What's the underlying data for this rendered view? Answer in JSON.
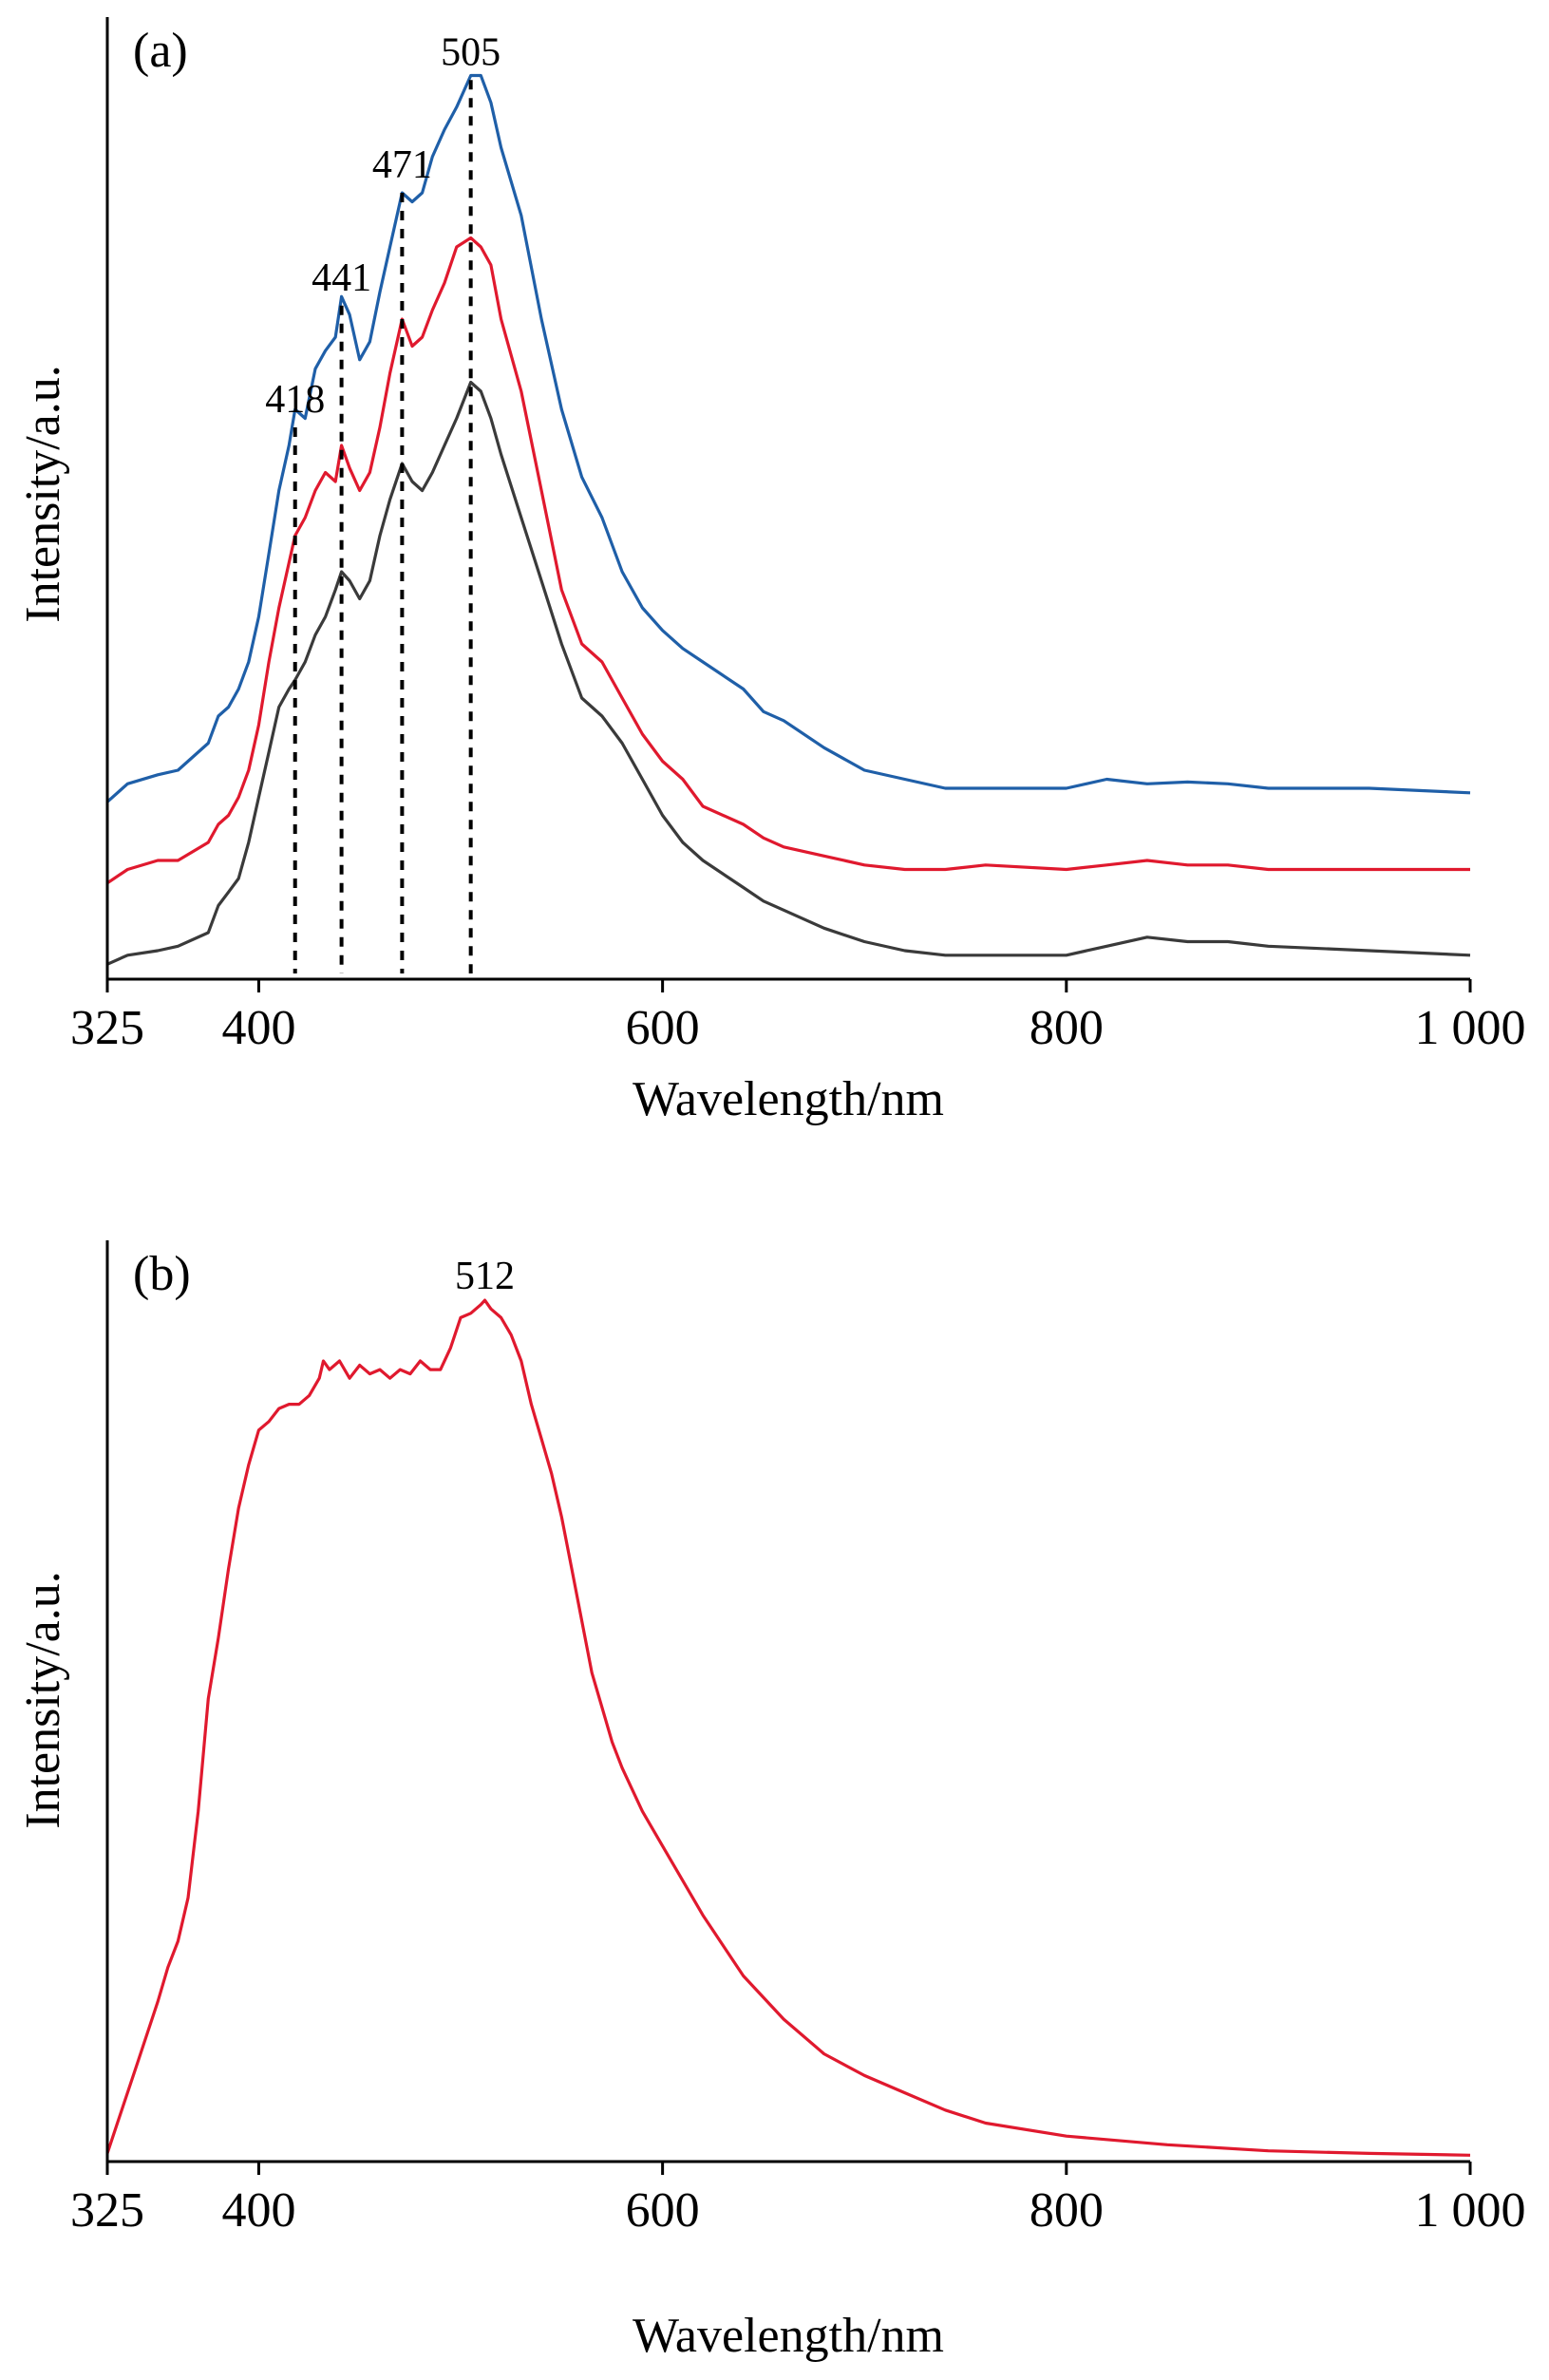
{
  "chart_data": [
    {
      "type": "line",
      "panel_label": "(a)",
      "xlabel": "Wavelength/nm",
      "ylabel": "Intensity/a.u.",
      "xlim": [
        325,
        1000
      ],
      "ylim": [
        0,
        1
      ],
      "xticks": [
        {
          "value": 325,
          "label": "325"
        },
        {
          "value": 400,
          "label": "400"
        },
        {
          "value": 600,
          "label": "600"
        },
        {
          "value": 800,
          "label": "800"
        },
        {
          "value": 1000,
          "label": "1 000"
        }
      ],
      "colors": [
        "#1f5fa8",
        "#e0192e",
        "#3a3a3a"
      ],
      "series": [
        {
          "color": "#1f5fa8",
          "x": [
            325,
            335,
            350,
            360,
            375,
            380,
            385,
            390,
            395,
            400,
            405,
            410,
            415,
            418,
            423,
            428,
            433,
            438,
            441,
            445,
            450,
            455,
            460,
            465,
            471,
            476,
            481,
            486,
            492,
            498,
            505,
            510,
            515,
            520,
            530,
            540,
            550,
            560,
            570,
            580,
            590,
            600,
            610,
            620,
            640,
            650,
            660,
            680,
            700,
            720,
            740,
            760,
            800,
            820,
            840,
            860,
            880,
            900,
            950,
            1000
          ],
          "y": [
            0.185,
            0.205,
            0.215,
            0.22,
            0.25,
            0.28,
            0.29,
            0.31,
            0.34,
            0.39,
            0.46,
            0.53,
            0.58,
            0.62,
            0.61,
            0.665,
            0.685,
            0.7,
            0.745,
            0.725,
            0.675,
            0.695,
            0.75,
            0.8,
            0.86,
            0.85,
            0.86,
            0.9,
            0.93,
            0.955,
            0.99,
            0.99,
            0.96,
            0.91,
            0.835,
            0.72,
            0.62,
            0.545,
            0.5,
            0.44,
            0.4,
            0.375,
            0.355,
            0.34,
            0.31,
            0.285,
            0.275,
            0.245,
            0.22,
            0.21,
            0.2,
            0.2,
            0.2,
            0.21,
            0.205,
            0.207,
            0.205,
            0.2,
            0.2,
            0.195
          ]
        },
        {
          "color": "#e0192e",
          "x": [
            325,
            335,
            350,
            360,
            375,
            380,
            385,
            390,
            395,
            400,
            405,
            410,
            415,
            418,
            423,
            428,
            433,
            438,
            441,
            445,
            450,
            455,
            460,
            465,
            471,
            476,
            481,
            486,
            492,
            498,
            505,
            510,
            515,
            520,
            530,
            540,
            550,
            560,
            570,
            580,
            590,
            600,
            610,
            620,
            640,
            650,
            660,
            680,
            700,
            720,
            740,
            760,
            800,
            820,
            840,
            860,
            880,
            900,
            950,
            1000
          ],
          "y": [
            0.095,
            0.11,
            0.12,
            0.12,
            0.14,
            0.16,
            0.17,
            0.19,
            0.22,
            0.27,
            0.34,
            0.4,
            0.45,
            0.48,
            0.5,
            0.53,
            0.55,
            0.54,
            0.58,
            0.555,
            0.53,
            0.55,
            0.6,
            0.66,
            0.72,
            0.69,
            0.7,
            0.73,
            0.76,
            0.8,
            0.81,
            0.8,
            0.78,
            0.72,
            0.64,
            0.53,
            0.42,
            0.36,
            0.34,
            0.3,
            0.26,
            0.23,
            0.21,
            0.18,
            0.16,
            0.145,
            0.135,
            0.125,
            0.115,
            0.11,
            0.11,
            0.115,
            0.11,
            0.115,
            0.12,
            0.115,
            0.115,
            0.11,
            0.11,
            0.11
          ]
        },
        {
          "color": "#3a3a3a",
          "x": [
            325,
            335,
            350,
            360,
            375,
            380,
            385,
            390,
            395,
            400,
            405,
            410,
            415,
            418,
            423,
            428,
            433,
            438,
            441,
            445,
            450,
            455,
            460,
            465,
            471,
            476,
            481,
            486,
            492,
            498,
            505,
            510,
            515,
            520,
            530,
            540,
            550,
            560,
            570,
            580,
            590,
            600,
            610,
            620,
            640,
            650,
            660,
            680,
            700,
            720,
            740,
            760,
            800,
            820,
            840,
            860,
            880,
            900,
            950,
            1000
          ],
          "y": [
            0.005,
            0.015,
            0.02,
            0.025,
            0.04,
            0.07,
            0.085,
            0.1,
            0.14,
            0.19,
            0.24,
            0.29,
            0.31,
            0.32,
            0.34,
            0.37,
            0.39,
            0.42,
            0.44,
            0.43,
            0.41,
            0.43,
            0.48,
            0.52,
            0.56,
            0.54,
            0.53,
            0.55,
            0.58,
            0.61,
            0.65,
            0.64,
            0.61,
            0.57,
            0.5,
            0.43,
            0.36,
            0.3,
            0.28,
            0.25,
            0.21,
            0.17,
            0.14,
            0.12,
            0.09,
            0.075,
            0.065,
            0.045,
            0.03,
            0.02,
            0.015,
            0.015,
            0.015,
            0.025,
            0.035,
            0.03,
            0.03,
            0.025,
            0.02,
            0.015
          ]
        }
      ],
      "peaks": [
        {
          "x": 418,
          "label": "418",
          "top": 0.6
        },
        {
          "x": 441,
          "label": "441",
          "top": 0.735
        },
        {
          "x": 471,
          "label": "471",
          "top": 0.86
        },
        {
          "x": 505,
          "label": "505",
          "top": 0.985
        }
      ]
    },
    {
      "type": "line",
      "panel_label": "(b)",
      "xlabel": "Wavelength/nm",
      "ylabel": "Intensity/a.u.",
      "xlim": [
        325,
        1000
      ],
      "ylim": [
        0,
        1
      ],
      "xticks": [
        {
          "value": 325,
          "label": "325"
        },
        {
          "value": 400,
          "label": "400"
        },
        {
          "value": 600,
          "label": "600"
        },
        {
          "value": 800,
          "label": "800"
        },
        {
          "value": 1000,
          "label": "1 000"
        }
      ],
      "colors": [
        "#e0192e"
      ],
      "series": [
        {
          "color": "#e0192e",
          "x": [
            325,
            330,
            340,
            350,
            355,
            360,
            365,
            370,
            375,
            380,
            385,
            390,
            395,
            400,
            405,
            410,
            415,
            420,
            425,
            430,
            432,
            435,
            440,
            445,
            450,
            455,
            460,
            465,
            470,
            475,
            480,
            485,
            490,
            495,
            500,
            505,
            510,
            512,
            515,
            520,
            525,
            530,
            535,
            540,
            545,
            550,
            555,
            560,
            565,
            570,
            575,
            580,
            590,
            600,
            620,
            640,
            660,
            680,
            700,
            720,
            740,
            760,
            800,
            850,
            900,
            950,
            1000
          ],
          "y": [
            0.005,
            0.04,
            0.11,
            0.18,
            0.22,
            0.25,
            0.3,
            0.4,
            0.53,
            0.6,
            0.68,
            0.75,
            0.8,
            0.84,
            0.85,
            0.865,
            0.87,
            0.87,
            0.88,
            0.9,
            0.92,
            0.91,
            0.92,
            0.9,
            0.915,
            0.905,
            0.91,
            0.9,
            0.91,
            0.905,
            0.92,
            0.91,
            0.91,
            0.935,
            0.97,
            0.975,
            0.985,
            0.99,
            0.98,
            0.97,
            0.95,
            0.92,
            0.87,
            0.83,
            0.79,
            0.74,
            0.68,
            0.62,
            0.56,
            0.52,
            0.48,
            0.45,
            0.4,
            0.36,
            0.28,
            0.21,
            0.16,
            0.12,
            0.095,
            0.075,
            0.055,
            0.04,
            0.025,
            0.015,
            0.008,
            0.005,
            0.003
          ]
        }
      ],
      "peaks": [
        {
          "x": 512,
          "label": "512",
          "top": 0.99
        }
      ]
    }
  ]
}
